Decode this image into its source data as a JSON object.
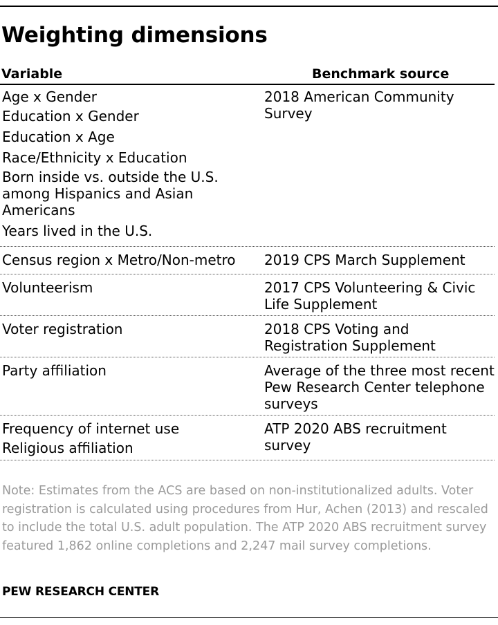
{
  "title": "Weighting dimensions",
  "columns": {
    "variable": "Variable",
    "source": "Benchmark source"
  },
  "rows": [
    {
      "variables": [
        "Age x Gender",
        "Education x Gender",
        "Education x Age",
        "Race/Ethnicity x Education",
        "Born inside vs. outside the U.S. among Hispanics and Asian Americans",
        "Years lived in the U.S."
      ],
      "source": "2018 American Community Survey"
    },
    {
      "variables": [
        "Census region x Metro/Non-metro"
      ],
      "source": "2019 CPS March Supplement"
    },
    {
      "variables": [
        "Volunteerism"
      ],
      "source": "2017 CPS Volunteering & Civic Life Supplement"
    },
    {
      "variables": [
        "Voter registration"
      ],
      "source": "2018 CPS Voting and Registration Supplement"
    },
    {
      "variables": [
        "Party affiliation"
      ],
      "source": "Average of the three most recent Pew Research Center telephone surveys"
    },
    {
      "variables": [
        "Frequency of internet use",
        "Religious affiliation"
      ],
      "source": "ATP 2020 ABS recruitment survey"
    }
  ],
  "note": "Note: Estimates from the ACS are based on non-institutionalized adults. Voter registration is calculated using procedures from Hur, Achen (2013) and rescaled to include the total U.S. adult population. The ATP 2020 ABS recruitment survey featured 1,862 online completions and 2,247 mail survey completions.",
  "organization": "PEW RESEARCH CENTER"
}
